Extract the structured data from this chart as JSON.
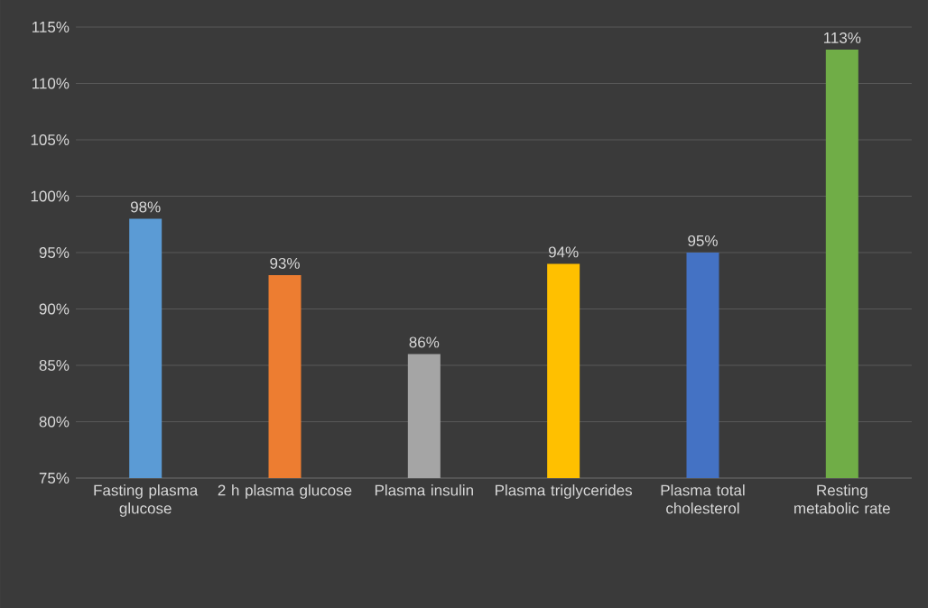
{
  "chart_data": {
    "type": "bar",
    "categories": [
      "Fasting plasma glucose",
      "2 h plasma glucose",
      "Plasma insulin",
      "Plasma triglycerides",
      "Plasma total cholesterol",
      "Resting metabolic rate"
    ],
    "values": [
      98,
      93,
      86,
      94,
      95,
      113
    ],
    "value_labels": [
      "98%",
      "93%",
      "86%",
      "94%",
      "95%",
      "113%"
    ],
    "colors": [
      "#5b9bd5",
      "#ed7d31",
      "#a5a5a5",
      "#ffc000",
      "#4472c4",
      "#70ad47"
    ],
    "ylim": [
      75,
      115
    ],
    "yticks": [
      {
        "value": 75,
        "label": "75%"
      },
      {
        "value": 80,
        "label": "80%"
      },
      {
        "value": 85,
        "label": "85%"
      },
      {
        "value": 90,
        "label": "90%"
      },
      {
        "value": 95,
        "label": "95%"
      },
      {
        "value": 100,
        "label": "100%"
      },
      {
        "value": 105,
        "label": "105%"
      },
      {
        "value": 110,
        "label": "110%"
      },
      {
        "value": 115,
        "label": "115%"
      }
    ],
    "grid": "y"
  }
}
